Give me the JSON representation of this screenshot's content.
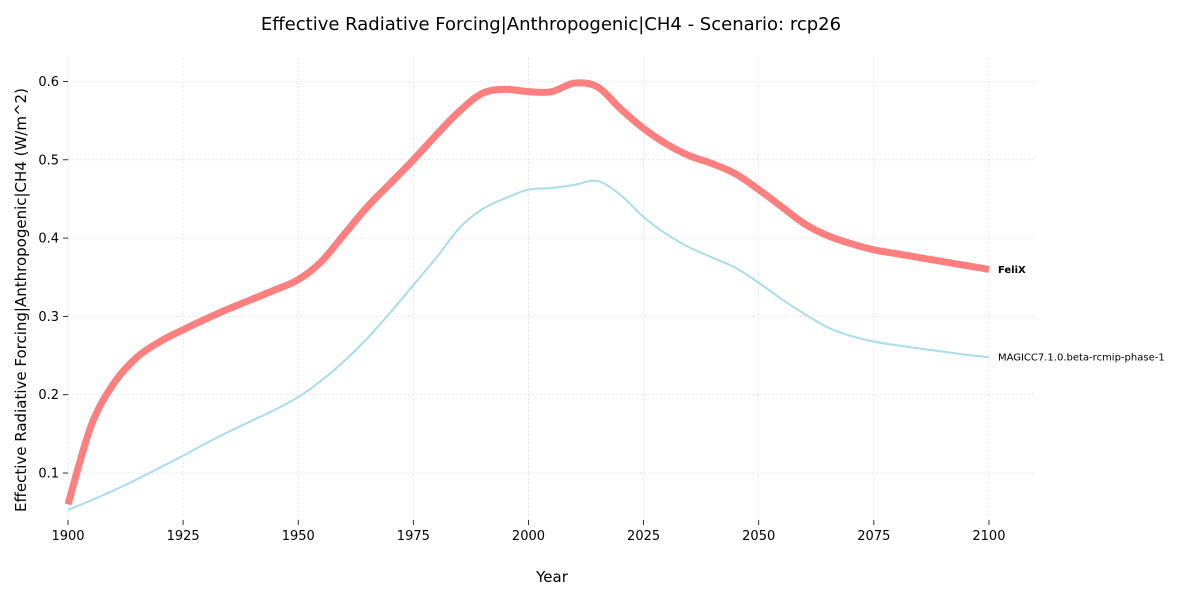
{
  "chart_data": {
    "type": "line",
    "title": "Effective Radiative Forcing|Anthropogenic|CH4 - Scenario: rcp26",
    "xlabel": "Year",
    "ylabel": "Effective Radiative Forcing|Anthropogenic|CH4 (W/m^2)",
    "xlim": [
      1900,
      2110
    ],
    "ylim": [
      0.04,
      0.63
    ],
    "xticks": [
      1900,
      1925,
      1950,
      1975,
      2000,
      2025,
      2050,
      2075,
      2100
    ],
    "yticks": [
      0.1,
      0.2,
      0.3,
      0.4,
      0.5,
      0.6
    ],
    "grid": true,
    "legend": "labels at line ends (right)",
    "x": [
      1900,
      1905,
      1910,
      1915,
      1920,
      1925,
      1930,
      1935,
      1940,
      1945,
      1950,
      1955,
      1960,
      1965,
      1970,
      1975,
      1980,
      1985,
      1990,
      1995,
      2000,
      2005,
      2010,
      2015,
      2020,
      2025,
      2030,
      2035,
      2040,
      2045,
      2050,
      2055,
      2060,
      2065,
      2070,
      2075,
      2080,
      2085,
      2090,
      2095,
      2100
    ],
    "series": [
      {
        "name": "FeliX",
        "color": "#ff7f7f",
        "bold_label": true,
        "values": [
          0.06,
          0.16,
          0.215,
          0.248,
          0.268,
          0.283,
          0.297,
          0.31,
          0.322,
          0.334,
          0.347,
          0.37,
          0.405,
          0.44,
          0.47,
          0.5,
          0.532,
          0.562,
          0.585,
          0.59,
          0.587,
          0.587,
          0.598,
          0.593,
          0.565,
          0.54,
          0.52,
          0.505,
          0.495,
          0.482,
          0.462,
          0.44,
          0.418,
          0.403,
          0.393,
          0.385,
          0.38,
          0.375,
          0.37,
          0.365,
          0.36
        ]
      },
      {
        "name": "MAGICC7.1.0.beta-rcmip-phase-1",
        "color": "#a8dde9",
        "bold_label": false,
        "values": [
          0.053,
          0.065,
          0.078,
          0.092,
          0.107,
          0.122,
          0.138,
          0.153,
          0.167,
          0.181,
          0.197,
          0.218,
          0.243,
          0.272,
          0.305,
          0.34,
          0.375,
          0.413,
          0.437,
          0.451,
          0.462,
          0.464,
          0.468,
          0.473,
          0.455,
          0.427,
          0.405,
          0.388,
          0.375,
          0.362,
          0.343,
          0.322,
          0.303,
          0.286,
          0.275,
          0.268,
          0.263,
          0.259,
          0.255,
          0.251,
          0.248
        ]
      }
    ]
  }
}
